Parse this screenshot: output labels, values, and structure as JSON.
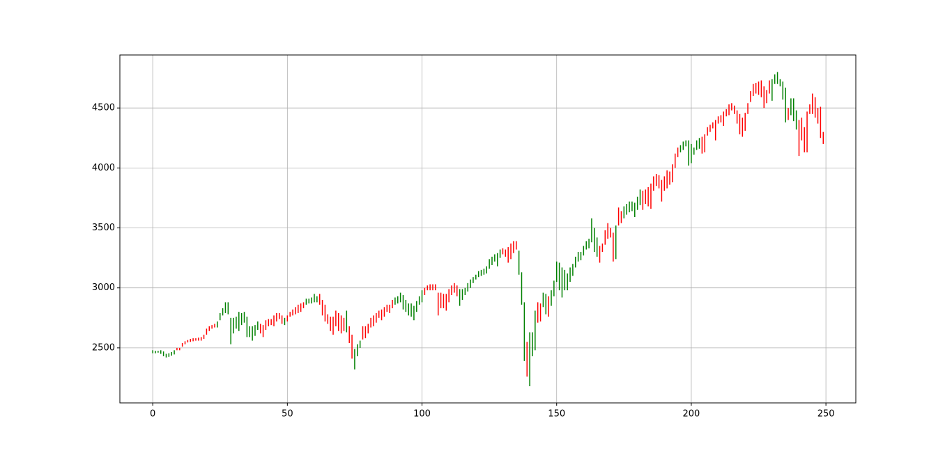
{
  "chart_data": {
    "type": "range-bar",
    "grid": true,
    "xlim": [
      -12.2,
      261.1
    ],
    "ylim": [
      2041,
      4942
    ],
    "xticks": [
      0,
      50,
      100,
      150,
      200,
      250
    ],
    "yticks": [
      2500,
      3000,
      3500,
      4000,
      4500
    ],
    "series": [
      {
        "color": "green",
        "x": [
          0,
          1,
          2,
          3,
          4,
          5,
          6,
          7,
          8,
          24,
          25,
          26,
          27,
          28,
          29,
          30,
          31,
          32,
          33,
          34,
          35,
          36,
          37,
          38,
          39,
          49,
          57,
          58,
          59,
          60,
          61,
          72,
          75,
          76,
          77,
          90,
          91,
          92,
          93,
          94,
          95,
          96,
          97,
          98,
          99,
          100,
          114,
          115,
          116,
          117,
          118,
          119,
          120,
          121,
          122,
          123,
          124,
          125,
          126,
          127,
          128,
          129,
          136,
          137,
          138,
          140,
          141,
          142,
          145,
          146,
          148,
          149,
          150,
          151,
          152,
          153,
          154,
          155,
          156,
          157,
          158,
          159,
          160,
          161,
          162,
          163,
          164,
          165,
          172,
          175,
          176,
          177,
          178,
          179,
          180,
          181,
          196,
          197,
          198,
          199,
          200,
          201,
          202,
          203,
          230,
          231,
          232,
          233,
          234,
          235,
          237,
          238,
          239
        ],
        "low": [
          2455,
          2455,
          2460,
          2450,
          2430,
          2420,
          2425,
          2435,
          2445,
          2670,
          2730,
          2770,
          2790,
          2780,
          2530,
          2620,
          2660,
          2640,
          2690,
          2710,
          2590,
          2590,
          2560,
          2600,
          2650,
          2690,
          2860,
          2870,
          2870,
          2880,
          2880,
          2630,
          2320,
          2430,
          2500,
          2860,
          2870,
          2880,
          2820,
          2800,
          2770,
          2760,
          2730,
          2800,
          2860,
          2880,
          2850,
          2900,
          2940,
          2970,
          3000,
          3040,
          3070,
          3090,
          3100,
          3110,
          3120,
          3160,
          3190,
          3220,
          3180,
          3250,
          3110,
          2860,
          2390,
          2180,
          2430,
          2480,
          2840,
          2780,
          2850,
          2930,
          3050,
          2980,
          2920,
          2980,
          2980,
          3050,
          3100,
          3170,
          3220,
          3230,
          3270,
          3320,
          3330,
          3380,
          3300,
          3260,
          3240,
          3580,
          3610,
          3630,
          3640,
          3590,
          3650,
          3690,
          4130,
          4150,
          4180,
          4020,
          4040,
          4110,
          4150,
          4160,
          4560,
          4700,
          4700,
          4680,
          4570,
          4380,
          4440,
          4390,
          4320
        ],
        "high": [
          2480,
          2475,
          2475,
          2480,
          2470,
          2450,
          2455,
          2465,
          2480,
          2720,
          2790,
          2830,
          2880,
          2880,
          2750,
          2750,
          2760,
          2800,
          2790,
          2800,
          2760,
          2680,
          2680,
          2690,
          2720,
          2750,
          2910,
          2910,
          2920,
          2950,
          2930,
          2810,
          2490,
          2530,
          2560,
          2920,
          2930,
          2960,
          2940,
          2900,
          2870,
          2870,
          2850,
          2890,
          2930,
          2980,
          2990,
          2990,
          3000,
          3040,
          3070,
          3090,
          3110,
          3140,
          3150,
          3160,
          3180,
          3240,
          3260,
          3280,
          3290,
          3320,
          3310,
          3130,
          2880,
          2630,
          2630,
          2810,
          2960,
          2950,
          2980,
          3060,
          3220,
          3210,
          3170,
          3150,
          3120,
          3170,
          3200,
          3260,
          3300,
          3300,
          3350,
          3390,
          3410,
          3580,
          3500,
          3420,
          3520,
          3680,
          3700,
          3720,
          3720,
          3710,
          3760,
          3820,
          4190,
          4220,
          4230,
          4230,
          4200,
          4170,
          4230,
          4250,
          4740,
          4780,
          4800,
          4740,
          4720,
          4670,
          4580,
          4580,
          4480
        ]
      },
      {
        "color": "red",
        "x": [
          9,
          10,
          11,
          12,
          13,
          14,
          15,
          16,
          17,
          18,
          19,
          20,
          21,
          22,
          23,
          40,
          41,
          42,
          43,
          44,
          45,
          46,
          47,
          48,
          50,
          51,
          52,
          53,
          54,
          55,
          56,
          62,
          63,
          64,
          65,
          66,
          67,
          68,
          69,
          70,
          71,
          73,
          74,
          78,
          79,
          80,
          81,
          82,
          83,
          84,
          85,
          86,
          87,
          88,
          89,
          101,
          102,
          103,
          104,
          105,
          106,
          107,
          108,
          109,
          110,
          111,
          112,
          113,
          130,
          131,
          132,
          133,
          134,
          135,
          139,
          143,
          144,
          147,
          166,
          167,
          168,
          169,
          170,
          171,
          173,
          174,
          182,
          183,
          184,
          185,
          186,
          187,
          188,
          189,
          190,
          191,
          192,
          193,
          194,
          195,
          204,
          205,
          206,
          207,
          208,
          209,
          210,
          211,
          212,
          213,
          214,
          215,
          216,
          217,
          218,
          219,
          220,
          221,
          222,
          223,
          224,
          225,
          226,
          227,
          228,
          229,
          236,
          240,
          241,
          242,
          243,
          244,
          245,
          246,
          247,
          248,
          249
        ],
        "low": [
          2480,
          2480,
          2510,
          2530,
          2545,
          2550,
          2555,
          2560,
          2560,
          2560,
          2575,
          2610,
          2640,
          2660,
          2670,
          2620,
          2590,
          2650,
          2680,
          2690,
          2680,
          2720,
          2740,
          2700,
          2720,
          2760,
          2770,
          2780,
          2790,
          2800,
          2830,
          2860,
          2770,
          2720,
          2700,
          2640,
          2610,
          2680,
          2640,
          2620,
          2640,
          2540,
          2410,
          2570,
          2580,
          2620,
          2670,
          2680,
          2710,
          2750,
          2730,
          2760,
          2800,
          2790,
          2830,
          2940,
          2980,
          2980,
          2980,
          2980,
          2770,
          2830,
          2830,
          2810,
          2880,
          2940,
          2960,
          2930,
          3280,
          3260,
          3210,
          3240,
          3290,
          3320,
          2260,
          2710,
          2720,
          2760,
          3210,
          3300,
          3360,
          3410,
          3420,
          3220,
          3520,
          3540,
          3650,
          3700,
          3680,
          3660,
          3810,
          3850,
          3830,
          3720,
          3810,
          3830,
          3860,
          3880,
          4000,
          4090,
          4120,
          4130,
          4270,
          4300,
          4330,
          4230,
          4370,
          4380,
          4350,
          4430,
          4440,
          4480,
          4450,
          4370,
          4280,
          4260,
          4310,
          4450,
          4550,
          4600,
          4620,
          4610,
          4590,
          4500,
          4540,
          4620,
          4400,
          4100,
          4230,
          4130,
          4130,
          4450,
          4450,
          4420,
          4370,
          4250,
          4200
        ],
        "high": [
          2500,
          2500,
          2540,
          2555,
          2565,
          2575,
          2580,
          2580,
          2585,
          2590,
          2610,
          2660,
          2680,
          2690,
          2700,
          2700,
          2690,
          2730,
          2740,
          2740,
          2770,
          2790,
          2790,
          2770,
          2770,
          2800,
          2820,
          2840,
          2860,
          2870,
          2880,
          2950,
          2900,
          2860,
          2780,
          2760,
          2760,
          2810,
          2790,
          2770,
          2750,
          2680,
          2610,
          2680,
          2680,
          2700,
          2750,
          2770,
          2790,
          2810,
          2820,
          2840,
          2860,
          2860,
          2900,
          3000,
          3020,
          3030,
          3030,
          3030,
          2960,
          2960,
          2950,
          2950,
          2990,
          3020,
          3040,
          3020,
          3330,
          3320,
          3340,
          3370,
          3390,
          3390,
          2550,
          2880,
          2870,
          2930,
          3350,
          3370,
          3480,
          3540,
          3500,
          3460,
          3670,
          3640,
          3810,
          3820,
          3840,
          3870,
          3930,
          3950,
          3940,
          3900,
          3930,
          3980,
          3970,
          4030,
          4120,
          4170,
          4260,
          4280,
          4340,
          4360,
          4380,
          4400,
          4430,
          4440,
          4470,
          4490,
          4530,
          4540,
          4520,
          4480,
          4450,
          4420,
          4460,
          4540,
          4640,
          4700,
          4710,
          4720,
          4730,
          4680,
          4650,
          4730,
          4500,
          4400,
          4420,
          4340,
          4470,
          4530,
          4620,
          4590,
          4500,
          4510,
          4300
        ]
      }
    ]
  }
}
